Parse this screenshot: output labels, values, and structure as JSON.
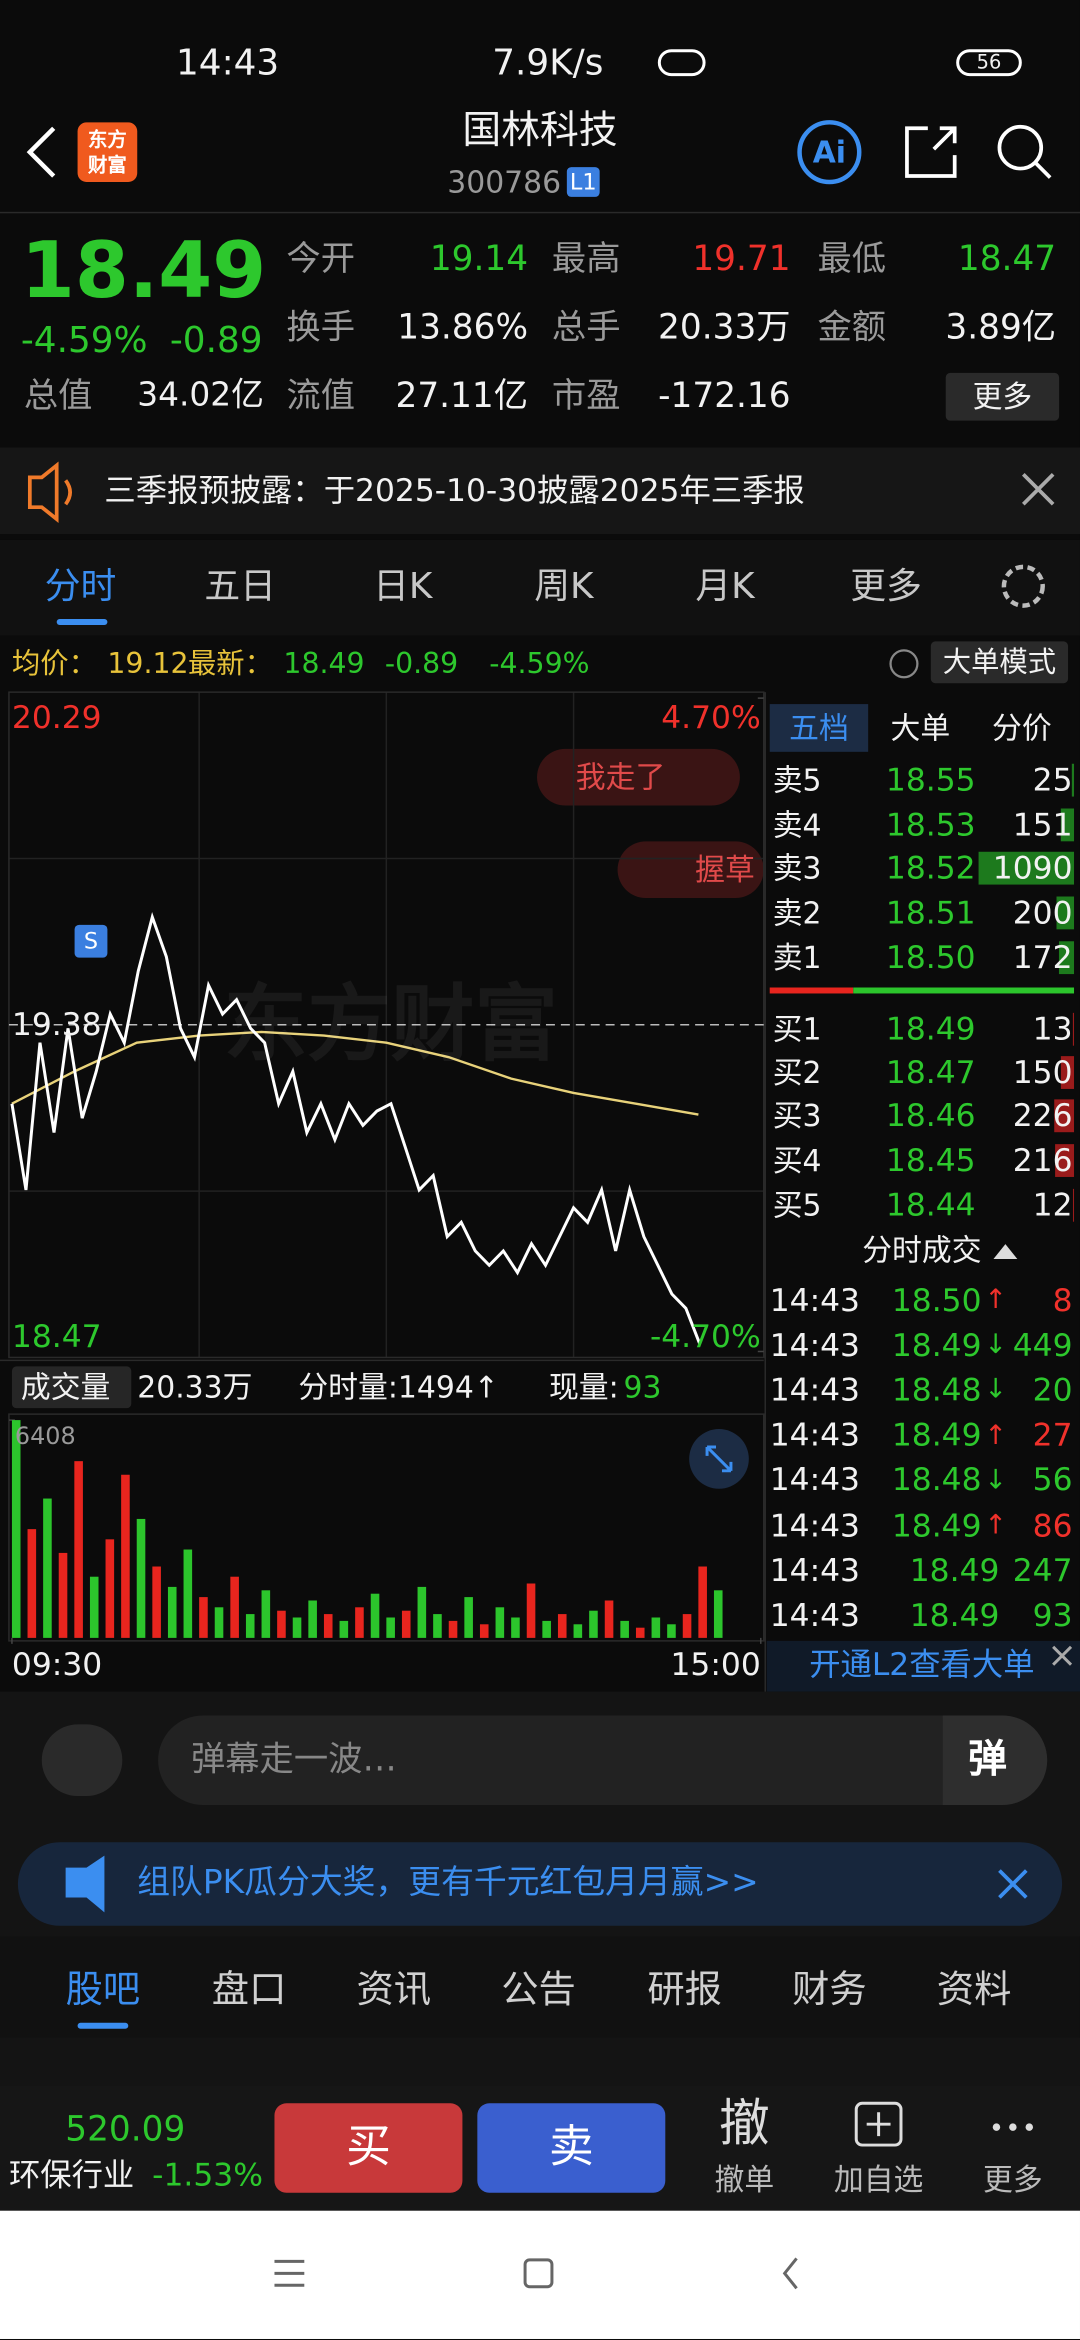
{
  "status": {
    "time": "14:43",
    "speed": "7.9K/s",
    "battery": "56"
  },
  "header": {
    "logo_lines": [
      "东方",
      "财富"
    ],
    "title": "国林科技",
    "code": "300786",
    "level": "L1",
    "ai": "Ai"
  },
  "quote": {
    "price": "18.49",
    "change_pct": "-4.59%",
    "change": "-0.89",
    "more": "更多",
    "fields": [
      {
        "label": "今开",
        "value": "19.14"
      },
      {
        "label": "最高",
        "value": "19.71"
      },
      {
        "label": "最低",
        "value": "18.47"
      },
      {
        "label": "换手",
        "value": "13.86%"
      },
      {
        "label": "总手",
        "value": "20.33万"
      },
      {
        "label": "金额",
        "value": "3.89亿"
      },
      {
        "label": "总值",
        "value": "34.02亿"
      },
      {
        "label": "流值",
        "value": "27.11亿"
      },
      {
        "label": "市盈",
        "value": "-172.16"
      }
    ]
  },
  "notice": {
    "text": "三季报预披露：于2025-10-30披露2025年三季报"
  },
  "tabs": [
    "分时",
    "五日",
    "日K",
    "周K",
    "月K",
    "更多"
  ],
  "info": {
    "avg_label": "均价：",
    "avg": "19.12",
    "last_label": "最新：",
    "last": "18.49",
    "change": "-0.89",
    "pct": "-4.59%",
    "mode": "大单模式"
  },
  "chart_data": {
    "type": "line",
    "xlim": [
      0,
      240
    ],
    "xticks": [
      {
        "value": 0,
        "label": "09:30"
      },
      {
        "value": 240,
        "label": "15:00"
      }
    ],
    "ylim": [
      18.47,
      20.29
    ],
    "yticks": [
      20.29,
      19.38,
      18.47
    ],
    "y2lim": [
      -4.7,
      4.7
    ],
    "y2ticks": [
      {
        "value": 4.7,
        "label": "4.70%"
      },
      {
        "value": -4.7,
        "label": "-4.70%"
      }
    ],
    "watermark": "东方财富",
    "annotations": [
      "我走了",
      "握草"
    ],
    "marker": "S",
    "series": [
      {
        "name": "价格",
        "color": "#ffffff",
        "x": [
          0,
          4.5,
          9,
          13.5,
          18,
          22.5,
          27,
          31.5,
          36,
          40.5,
          45,
          49.5,
          54,
          58.5,
          63,
          67.5,
          72,
          76.5,
          81,
          85.5,
          90,
          94.5,
          99,
          103.5,
          108,
          112.5,
          117,
          121.5,
          126,
          130.5,
          135,
          139.5,
          144,
          148.5,
          153,
          157.5,
          162,
          166.5,
          171,
          175.5,
          180,
          184.5,
          189,
          193.5,
          198,
          202.5,
          207,
          211.5,
          216,
          220.5
        ],
        "values": [
          19.16,
          18.92,
          19.33,
          19.08,
          19.37,
          19.12,
          19.25,
          19.41,
          19.33,
          19.53,
          19.68,
          19.57,
          19.37,
          19.29,
          19.49,
          19.41,
          19.45,
          19.37,
          19.33,
          19.16,
          19.25,
          19.08,
          19.16,
          19.06,
          19.16,
          19.1,
          19.14,
          19.16,
          19.04,
          18.92,
          18.96,
          18.79,
          18.83,
          18.75,
          18.71,
          18.75,
          18.69,
          18.77,
          18.71,
          18.79,
          18.87,
          18.83,
          18.92,
          18.75,
          18.92,
          18.79,
          18.71,
          18.63,
          18.59,
          18.49
        ]
      },
      {
        "name": "均价",
        "color": "#e8d27a",
        "x": [
          0,
          20,
          40,
          60,
          80,
          100,
          120,
          140,
          160,
          180,
          200,
          220
        ],
        "values": [
          19.16,
          19.25,
          19.33,
          19.35,
          19.36,
          19.35,
          19.33,
          19.29,
          19.23,
          19.19,
          19.16,
          19.13
        ]
      }
    ]
  },
  "volume_chart": {
    "type": "bar",
    "label": "成交量",
    "total": "20.33万",
    "minute": "分时量:1494↑",
    "now_label": "现量:",
    "now": "93",
    "ylim": [
      0,
      6408
    ],
    "yticks": [
      6408
    ],
    "x": [
      0,
      5,
      10,
      15,
      20,
      25,
      30,
      35,
      40,
      45,
      50,
      55,
      60,
      65,
      70,
      75,
      80,
      85,
      90,
      95,
      100,
      105,
      110,
      115,
      120,
      125,
      130,
      135,
      140,
      145,
      150,
      155,
      160,
      165,
      170,
      175,
      180,
      185,
      190,
      195,
      200,
      205,
      210,
      215,
      220,
      225
    ],
    "values": [
      6408,
      3200,
      4100,
      2500,
      5200,
      1800,
      2900,
      4800,
      3500,
      2100,
      1500,
      2600,
      1200,
      900,
      1800,
      700,
      1400,
      800,
      600,
      1100,
      700,
      500,
      900,
      1300,
      600,
      800,
      1500,
      700,
      500,
      1200,
      400,
      900,
      600,
      1600,
      500,
      700,
      400,
      800,
      1100,
      500,
      300,
      600,
      400,
      700,
      2100,
      1400
    ],
    "colors": [
      "#2cc52c",
      "#e8251e",
      "#2cc52c",
      "#e8251e",
      "#e8251e",
      "#2cc52c",
      "#e8251e",
      "#e8251e",
      "#2cc52c",
      "#e8251e",
      "#2cc52c",
      "#2cc52c",
      "#e8251e",
      "#2cc52c",
      "#e8251e",
      "#2cc52c",
      "#2cc52c",
      "#e8251e",
      "#2cc52c",
      "#2cc52c",
      "#e8251e",
      "#2cc52c",
      "#e8251e",
      "#2cc52c",
      "#2cc52c",
      "#e8251e",
      "#2cc52c",
      "#2cc52c",
      "#e8251e",
      "#2cc52c",
      "#e8251e",
      "#2cc52c",
      "#2cc52c",
      "#e8251e",
      "#2cc52c",
      "#e8251e",
      "#2cc52c",
      "#2cc52c",
      "#e8251e",
      "#2cc52c",
      "#e8251e",
      "#2cc52c",
      "#2cc52c",
      "#e8251e",
      "#e8251e",
      "#2cc52c"
    ]
  },
  "order_book": {
    "tabs": [
      "五档",
      "大单",
      "分价"
    ],
    "asks": [
      {
        "label": "卖5",
        "price": "18.55",
        "qty": 25
      },
      {
        "label": "卖4",
        "price": "18.53",
        "qty": 151
      },
      {
        "label": "卖3",
        "price": "18.52",
        "qty": 1090
      },
      {
        "label": "卖2",
        "price": "18.51",
        "qty": 200
      },
      {
        "label": "卖1",
        "price": "18.50",
        "qty": 172
      }
    ],
    "bids": [
      {
        "label": "买1",
        "price": "18.49",
        "qty": 13
      },
      {
        "label": "买2",
        "price": "18.47",
        "qty": 150
      },
      {
        "label": "买3",
        "price": "18.46",
        "qty": 226
      },
      {
        "label": "买4",
        "price": "18.45",
        "qty": 216
      },
      {
        "label": "买5",
        "price": "18.44",
        "qty": 12
      }
    ],
    "trades_title": "分时成交",
    "trades": [
      {
        "time": "14:43",
        "price": "18.50",
        "dir": "↑",
        "qty": 8
      },
      {
        "time": "14:43",
        "price": "18.49",
        "dir": "↓",
        "qty": 449
      },
      {
        "time": "14:43",
        "price": "18.48",
        "dir": "↓",
        "qty": 20
      },
      {
        "time": "14:43",
        "price": "18.49",
        "dir": "↑",
        "qty": 27
      },
      {
        "time": "14:43",
        "price": "18.48",
        "dir": "↓",
        "qty": 56
      },
      {
        "time": "14:43",
        "price": "18.49",
        "dir": "↑",
        "qty": 86
      },
      {
        "time": "14:43",
        "price": "18.49",
        "qty": 247
      },
      {
        "time": "14:43",
        "price": "18.49",
        "qty": 93
      }
    ],
    "l2": "开通L2查看大单"
  },
  "danmaku": {
    "placeholder": "弹幕走一波…",
    "button": "弹"
  },
  "banner": "组队PK瓜分大奖，更有千元红包月月赢>>",
  "bottom_tabs": [
    "股吧",
    "盘口",
    "资讯",
    "公告",
    "研报",
    "财务",
    "资料"
  ],
  "toolbar": {
    "index_value": "520.09",
    "index_name": "环保行业",
    "index_pct": "-1.53%",
    "buy": "买",
    "sell": "卖",
    "cancel_icon": "撤",
    "cancel": "撤单",
    "watch": "加自选",
    "more": "更多"
  }
}
